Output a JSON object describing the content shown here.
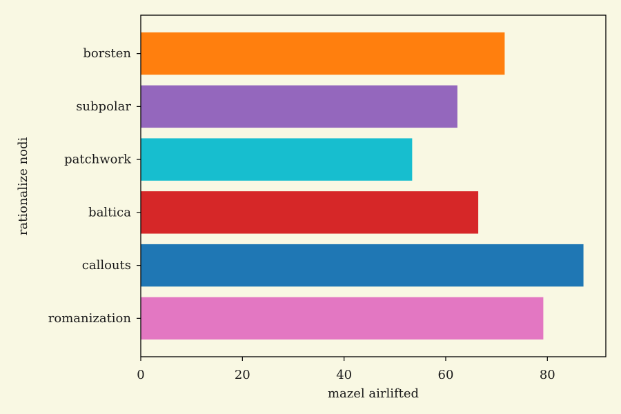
{
  "chart_data": {
    "type": "bar",
    "orientation": "horizontal",
    "title": "",
    "xlabel": "mazel airlifted",
    "ylabel": "rationalize nodi",
    "xlim": [
      0,
      91.5
    ],
    "xticks": [
      0,
      20,
      40,
      60,
      80
    ],
    "grid": false,
    "categories": [
      "romanization",
      "callouts",
      "baltica",
      "patchwork",
      "subpolar",
      "borsten"
    ],
    "values": [
      79.2,
      87.1,
      66.4,
      53.4,
      62.3,
      71.6
    ],
    "colors": [
      "#e377c2",
      "#1f77b4",
      "#d62728",
      "#17becf",
      "#9467bd",
      "#ff7f0e"
    ]
  }
}
